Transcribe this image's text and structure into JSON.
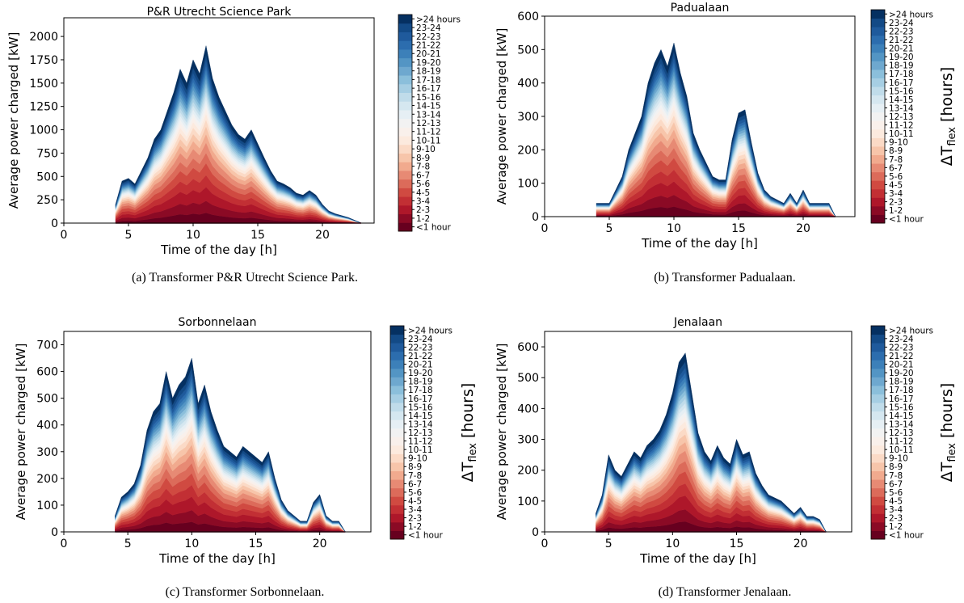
{
  "colorbar": {
    "label": "ΔT_flex [hours]",
    "label_main": "ΔT",
    "label_sub": "flex",
    "label_rest": " [hours]",
    "bins": [
      "<1 hour",
      "1-2",
      "2-3",
      "3-4",
      "4-5",
      "5-6",
      "6-7",
      "7-8",
      "8-9",
      "9-10",
      "10-11",
      "11-12",
      "12-13",
      "13-14",
      "14-15",
      "15-16",
      "16-17",
      "17-18",
      "18-19",
      "19-20",
      "20-21",
      "21-22",
      "22-23",
      "23-24",
      ">24 hours"
    ],
    "colors": [
      "#67001f",
      "#8b0a25",
      "#ae172a",
      "#c22f34",
      "#d04a41",
      "#dc6b5a",
      "#e78a74",
      "#f1aa8e",
      "#f7c5aa",
      "#fbdac6",
      "#fceade",
      "#f9f0eb",
      "#f2f2f2",
      "#e6eff4",
      "#d5e7f0",
      "#c0dcea",
      "#a6cee3",
      "#8bbfdb",
      "#6ea8cf",
      "#5395c4",
      "#3c80b9",
      "#2c6dae",
      "#1f5a9c",
      "#134a86",
      "#053061"
    ]
  },
  "charts": [
    {
      "title": "P&R Utrecht Science Park",
      "caption": "(a) Transformer P&R Utrecht Science Park.",
      "xlabel": "Time of the day [h]",
      "ylabel": "Average power charged [kW]",
      "chart_data": {
        "type": "area",
        "stacked": true,
        "xlim": [
          0,
          24
        ],
        "ylim": [
          0,
          2200
        ],
        "xticks": [
          0,
          5,
          10,
          15,
          20
        ],
        "yticks": [
          0,
          250,
          500,
          750,
          1000,
          1250,
          1500,
          1750,
          2000
        ],
        "x": [
          4.0,
          4.5,
          5.0,
          5.5,
          6.0,
          6.5,
          7.0,
          7.5,
          8.0,
          8.5,
          9.0,
          9.5,
          10.0,
          10.5,
          11.0,
          11.5,
          12.0,
          12.5,
          13.0,
          13.5,
          14.0,
          14.5,
          15.0,
          15.5,
          16.0,
          16.5,
          17.0,
          17.5,
          18.0,
          18.5,
          19.0,
          19.5,
          20.0,
          20.5,
          21.0,
          21.5,
          22.0,
          22.5,
          23.0
        ],
        "total": [
          200,
          450,
          480,
          420,
          560,
          700,
          900,
          1000,
          1200,
          1400,
          1650,
          1500,
          1750,
          1600,
          1900,
          1550,
          1350,
          1200,
          1050,
          950,
          900,
          1000,
          850,
          700,
          560,
          450,
          420,
          380,
          320,
          300,
          350,
          300,
          200,
          130,
          100,
          80,
          60,
          30,
          0
        ]
      }
    },
    {
      "title": "Padualaan",
      "caption": "(b) Transformer Padualaan.",
      "xlabel": "Time of the day [h]",
      "ylabel": "Average power charged [kW]",
      "chart_data": {
        "type": "area",
        "stacked": true,
        "xlim": [
          0,
          24
        ],
        "ylim": [
          0,
          600
        ],
        "xticks": [
          0,
          5,
          10,
          15,
          20
        ],
        "yticks": [
          0,
          100,
          200,
          300,
          400,
          500,
          600
        ],
        "x": [
          4.0,
          4.5,
          5.0,
          5.5,
          6.0,
          6.5,
          7.0,
          7.5,
          8.0,
          8.5,
          9.0,
          9.5,
          10.0,
          10.5,
          11.0,
          11.5,
          12.0,
          12.5,
          13.0,
          13.5,
          14.0,
          14.5,
          15.0,
          15.5,
          16.0,
          16.5,
          17.0,
          17.5,
          18.0,
          18.5,
          19.0,
          19.5,
          20.0,
          20.5,
          21.0,
          21.5,
          22.0,
          22.5
        ],
        "total": [
          40,
          40,
          40,
          80,
          120,
          200,
          250,
          300,
          400,
          460,
          500,
          450,
          520,
          430,
          360,
          250,
          200,
          160,
          120,
          110,
          110,
          230,
          310,
          320,
          220,
          130,
          80,
          60,
          50,
          40,
          70,
          40,
          80,
          40,
          40,
          40,
          40,
          0
        ]
      }
    },
    {
      "title": "Sorbonnelaan",
      "caption": "(c) Transformer Sorbonnelaan.",
      "xlabel": "Time of the day [h]",
      "ylabel": "Average power charged [kW]",
      "chart_data": {
        "type": "area",
        "stacked": true,
        "xlim": [
          0,
          24
        ],
        "ylim": [
          0,
          750
        ],
        "xticks": [
          0,
          5,
          10,
          15,
          20
        ],
        "yticks": [
          0,
          100,
          200,
          300,
          400,
          500,
          600,
          700
        ],
        "x": [
          4.0,
          4.5,
          5.0,
          5.5,
          6.0,
          6.5,
          7.0,
          7.5,
          8.0,
          8.5,
          9.0,
          9.5,
          10.0,
          10.5,
          11.0,
          11.5,
          12.0,
          12.5,
          13.0,
          13.5,
          14.0,
          14.5,
          15.0,
          15.5,
          16.0,
          16.5,
          17.0,
          17.5,
          18.0,
          18.5,
          19.0,
          19.5,
          20.0,
          20.5,
          21.0,
          21.5,
          22.0
        ],
        "total": [
          60,
          130,
          150,
          180,
          250,
          380,
          450,
          480,
          600,
          500,
          550,
          580,
          650,
          480,
          550,
          450,
          380,
          320,
          300,
          280,
          320,
          300,
          280,
          260,
          300,
          200,
          120,
          80,
          60,
          40,
          40,
          110,
          140,
          60,
          40,
          40,
          0
        ]
      }
    },
    {
      "title": "Jenalaan",
      "caption": "(d) Transformer Jenalaan.",
      "xlabel": "Time of the day [h]",
      "ylabel": "Average power charged [kW]",
      "chart_data": {
        "type": "area",
        "stacked": true,
        "xlim": [
          0,
          24
        ],
        "ylim": [
          0,
          650
        ],
        "xticks": [
          0,
          5,
          10,
          15,
          20
        ],
        "yticks": [
          0,
          100,
          200,
          300,
          400,
          500,
          600
        ],
        "x": [
          4.0,
          4.5,
          5.0,
          5.5,
          6.0,
          6.5,
          7.0,
          7.5,
          8.0,
          8.5,
          9.0,
          9.5,
          10.0,
          10.5,
          11.0,
          11.5,
          12.0,
          12.5,
          13.0,
          13.5,
          14.0,
          14.5,
          15.0,
          15.5,
          16.0,
          16.5,
          17.0,
          17.5,
          18.0,
          18.5,
          19.0,
          19.5,
          20.0,
          20.5,
          21.0,
          21.5,
          22.0
        ],
        "total": [
          60,
          120,
          250,
          200,
          180,
          220,
          260,
          240,
          280,
          300,
          330,
          380,
          450,
          550,
          580,
          450,
          320,
          260,
          230,
          280,
          240,
          220,
          300,
          250,
          260,
          190,
          150,
          120,
          110,
          100,
          80,
          60,
          80,
          50,
          50,
          40,
          0
        ]
      }
    }
  ]
}
